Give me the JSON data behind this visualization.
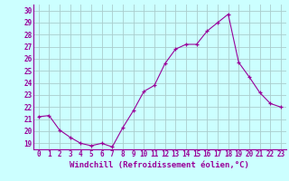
{
  "x": [
    0,
    1,
    2,
    3,
    4,
    5,
    6,
    7,
    8,
    9,
    10,
    11,
    12,
    13,
    14,
    15,
    16,
    17,
    18,
    19,
    20,
    21,
    22,
    23
  ],
  "y": [
    21.2,
    21.3,
    20.1,
    19.5,
    19.0,
    18.8,
    19.0,
    18.7,
    20.3,
    21.7,
    23.3,
    23.8,
    25.6,
    26.8,
    27.2,
    27.2,
    28.3,
    29.0,
    29.7,
    25.7,
    24.5,
    23.2,
    22.3,
    22.0
  ],
  "line_color": "#990099",
  "marker": "+",
  "bg_color": "#ccffff",
  "grid_color": "#aacccc",
  "xlabel": "Windchill (Refroidissement éolien,°C)",
  "xlim": [
    -0.5,
    23.5
  ],
  "ylim": [
    18.5,
    30.5
  ],
  "yticks": [
    19,
    20,
    21,
    22,
    23,
    24,
    25,
    26,
    27,
    28,
    29,
    30
  ],
  "xticks": [
    0,
    1,
    2,
    3,
    4,
    5,
    6,
    7,
    8,
    9,
    10,
    11,
    12,
    13,
    14,
    15,
    16,
    17,
    18,
    19,
    20,
    21,
    22,
    23
  ],
  "tick_fontsize": 5.5,
  "label_fontsize": 6.5
}
